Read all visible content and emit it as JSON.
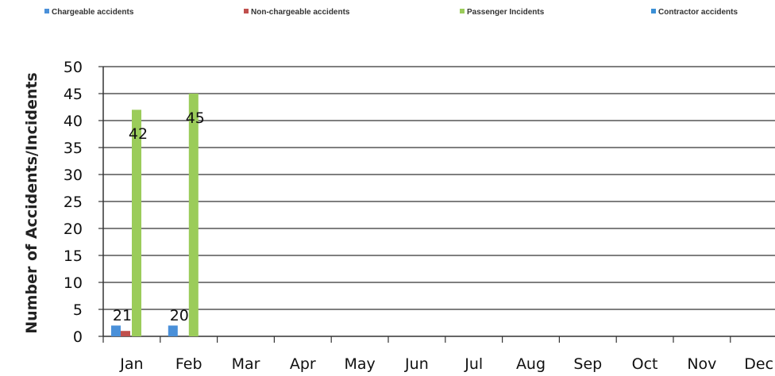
{
  "chart_data": {
    "type": "bar",
    "title": "",
    "xlabel": "",
    "ylabel": "Number of Accidents/Incidents",
    "ylim": [
      0,
      50
    ],
    "yticks": [
      0,
      5,
      10,
      15,
      20,
      25,
      30,
      35,
      40,
      45,
      50
    ],
    "grid": true,
    "legend_position": "top",
    "categories": [
      "Jan",
      "Feb",
      "Mar",
      "Apr",
      "May",
      "Jun",
      "Jul",
      "Aug",
      "Sep",
      "Oct",
      "Nov",
      "Dec"
    ],
    "series": [
      {
        "name": "Chargeable accidents",
        "color": "#4a90d9",
        "values": [
          2,
          2,
          null,
          null,
          null,
          null,
          null,
          null,
          null,
          null,
          null,
          null
        ]
      },
      {
        "name": "Non-chargeable accidents",
        "color": "#c0504d",
        "values": [
          1,
          0,
          null,
          null,
          null,
          null,
          null,
          null,
          null,
          null,
          null,
          null
        ]
      },
      {
        "name": "Passenger Incidents",
        "color": "#9bcc5a",
        "values": [
          42,
          45,
          null,
          null,
          null,
          null,
          null,
          null,
          null,
          null,
          null,
          null
        ]
      },
      {
        "name": "Contractor accidents",
        "color": "#3a8fd6",
        "values": [
          null,
          null,
          null,
          null,
          null,
          null,
          null,
          null,
          null,
          null,
          null,
          null
        ]
      }
    ],
    "data_labels": [
      {
        "category": "Jan",
        "text": "21"
      },
      {
        "category": "Jan",
        "text": "42"
      },
      {
        "category": "Feb",
        "text": "20"
      },
      {
        "category": "Feb",
        "text": "45"
      }
    ]
  }
}
